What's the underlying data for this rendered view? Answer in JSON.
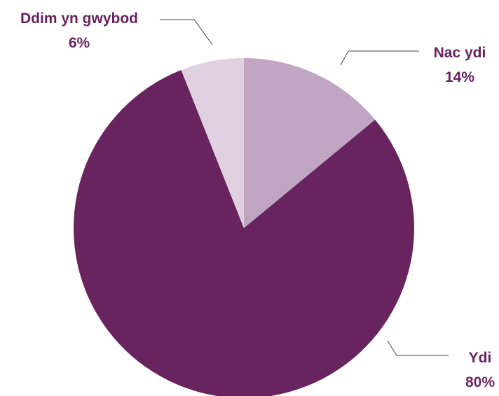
{
  "chart_data": {
    "type": "pie",
    "categories": [
      "Nac ydi",
      "Ydi",
      "Ddim yn gwybod"
    ],
    "values": [
      14,
      80,
      6
    ],
    "value_labels": [
      "14%",
      "80%",
      "6%"
    ],
    "colors": [
      "#C0A6C2",
      "#67245F",
      "#E0D1E0"
    ],
    "label_color": "#67245F",
    "start_angle_deg": 0,
    "direction": "clockwise",
    "legend": "none"
  }
}
